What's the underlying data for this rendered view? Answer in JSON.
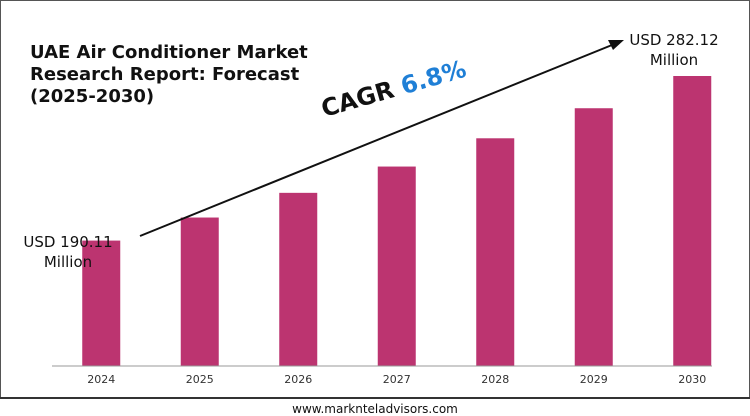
{
  "title": "UAE Air Conditioner Market Research Report: Forecast (2025-2030)",
  "start_label": "USD 190.11 Million",
  "end_label": "USD 282.12 Million",
  "cagr_text": "CAGR ",
  "cagr_value": "6.8%",
  "footer": "www.marknteladvisors.com",
  "colors": {
    "bar": "#bc3470",
    "cagr_value": "#1f7fd6",
    "axis": "#999999"
  },
  "chart_data": {
    "type": "bar",
    "categories": [
      "2024",
      "2025",
      "2026",
      "2027",
      "2028",
      "2029",
      "2030"
    ],
    "values": [
      190.11,
      203.0,
      216.8,
      231.5,
      247.3,
      264.1,
      282.12
    ],
    "title": "UAE Air Conditioner Market Research Report: Forecast (2025-2030)",
    "xlabel": "",
    "ylabel": "",
    "grid": false,
    "legend": "none"
  }
}
